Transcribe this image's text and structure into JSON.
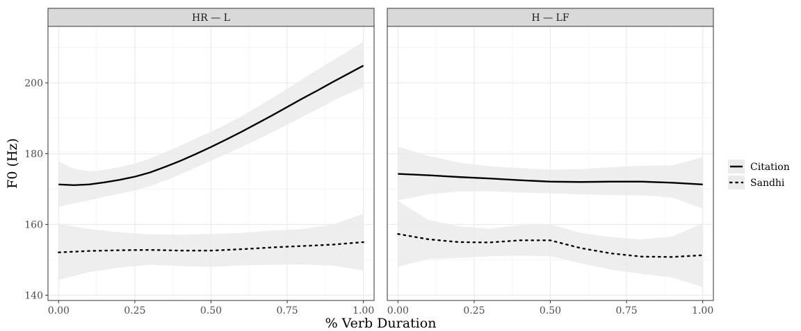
{
  "chart_data": {
    "type": "line",
    "xlabel": "% Verb Duration",
    "ylabel": "F0 (Hz)",
    "xlim": [
      -0.035,
      1.035
    ],
    "ylim": [
      138.5,
      216
    ],
    "x_ticks": [
      "0.00",
      "0.25",
      "0.50",
      "0.75",
      "1.00"
    ],
    "y_ticks": [
      "140",
      "160",
      "180",
      "200"
    ],
    "grid": true,
    "legend_position": "right",
    "legend": [
      {
        "name": "Citation",
        "linestyle": "solid"
      },
      {
        "name": "Sandhi",
        "linestyle": "dotted"
      }
    ],
    "colors": {
      "line": "#000000",
      "ribbon": "#ebebeb",
      "strip": "#d9d9d9",
      "grid": "#ebebeb"
    },
    "panels": [
      {
        "title": "HR — L",
        "series": [
          {
            "name": "Citation",
            "x": [
              0.0,
              0.05,
              0.1,
              0.15,
              0.2,
              0.25,
              0.3,
              0.35,
              0.4,
              0.45,
              0.5,
              0.55,
              0.6,
              0.65,
              0.7,
              0.75,
              0.8,
              0.85,
              0.9,
              0.95,
              1.0
            ],
            "y": [
              171.3,
              171.1,
              171.3,
              171.9,
              172.6,
              173.5,
              174.7,
              176.3,
              178.0,
              179.9,
              181.9,
              184.0,
              186.2,
              188.5,
              190.8,
              193.2,
              195.6,
              197.9,
              200.3,
              202.6,
              204.9
            ],
            "ci_lower": [
              165.0,
              166.0,
              166.8,
              167.8,
              168.7,
              169.6,
              170.8,
              172.4,
              174.2,
              176.1,
              178.0,
              179.9,
              181.9,
              183.9,
              186.0,
              188.2,
              190.4,
              192.6,
              194.9,
              197.0,
              198.7
            ],
            "ci_upper": [
              177.8,
              175.8,
              175.0,
              175.4,
              176.2,
              177.2,
              178.7,
              180.4,
              182.3,
              184.3,
              186.2,
              188.3,
              190.6,
              193.1,
              195.7,
              198.4,
              201.1,
              203.8,
              206.4,
              209.0,
              211.7
            ]
          },
          {
            "name": "Sandhi",
            "x": [
              0.0,
              0.1,
              0.2,
              0.3,
              0.4,
              0.5,
              0.6,
              0.7,
              0.8,
              0.9,
              1.0
            ],
            "y": [
              152.1,
              152.5,
              152.7,
              152.8,
              152.6,
              152.6,
              153.0,
              153.5,
              153.9,
              154.3,
              155.0
            ],
            "ci_lower": [
              144.3,
              146.5,
              147.8,
              148.6,
              148.2,
              148.0,
              148.4,
              148.6,
              148.7,
              148.3,
              147.0
            ],
            "ci_upper": [
              160.1,
              158.7,
              157.8,
              157.2,
              157.1,
              157.3,
              157.6,
              158.3,
              158.7,
              160.0,
              163.0
            ]
          }
        ]
      },
      {
        "title": "H — LF",
        "series": [
          {
            "name": "Citation",
            "x": [
              0.0,
              0.1,
              0.2,
              0.3,
              0.4,
              0.5,
              0.6,
              0.7,
              0.8,
              0.9,
              1.0
            ],
            "y": [
              174.3,
              173.9,
              173.4,
              173.0,
              172.5,
              172.1,
              172.0,
              172.1,
              172.1,
              171.8,
              171.3
            ],
            "ci_lower": [
              166.8,
              168.5,
              169.3,
              169.4,
              169.0,
              168.8,
              168.5,
              168.3,
              168.2,
              167.6,
              164.5
            ],
            "ci_upper": [
              182.0,
              179.4,
              177.5,
              176.5,
              175.9,
              175.5,
              175.6,
              176.2,
              176.6,
              176.7,
              179.0
            ]
          },
          {
            "name": "Sandhi",
            "x": [
              0.0,
              0.1,
              0.2,
              0.3,
              0.4,
              0.5,
              0.6,
              0.7,
              0.8,
              0.9,
              1.0
            ],
            "y": [
              157.3,
              155.8,
              155.0,
              154.9,
              155.5,
              155.5,
              153.3,
              151.8,
              150.9,
              150.8,
              151.3
            ],
            "ci_lower": [
              148.0,
              150.2,
              150.5,
              151.0,
              151.2,
              151.0,
              149.0,
              147.2,
              146.0,
              145.0,
              142.3
            ],
            "ci_upper": [
              166.6,
              161.3,
              159.5,
              158.8,
              159.8,
              160.0,
              157.6,
              156.4,
              155.8,
              156.6,
              160.3
            ]
          }
        ]
      }
    ]
  }
}
